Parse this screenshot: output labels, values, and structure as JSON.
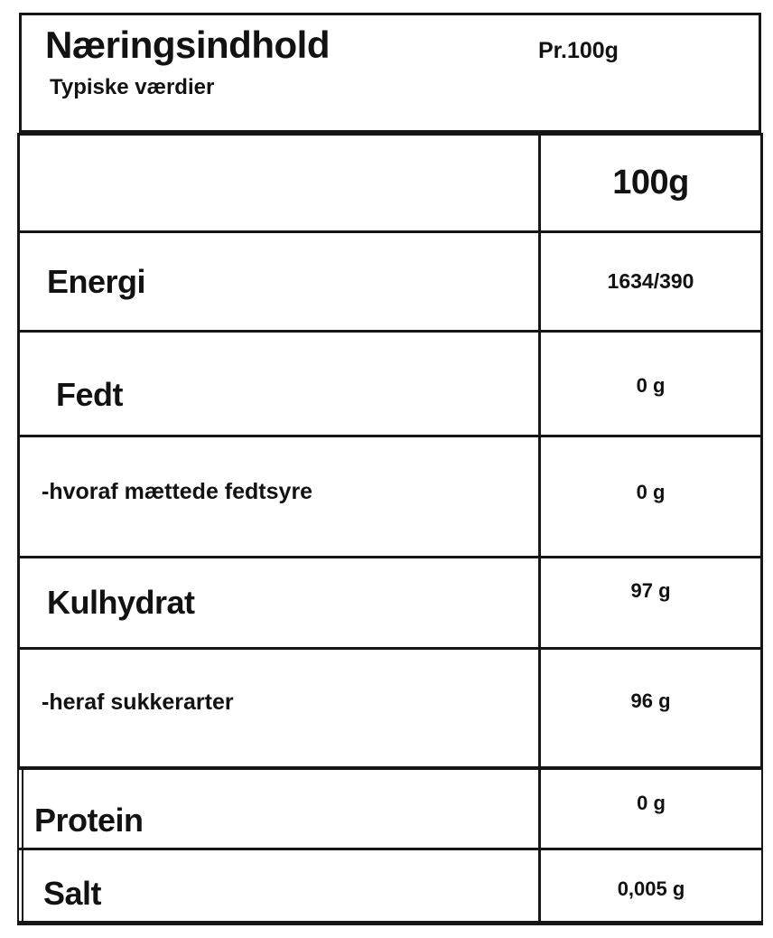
{
  "header": {
    "title": "Næringsindhold",
    "per": "Pr.100g",
    "subtitle": "Typiske værdier"
  },
  "table": {
    "column_header": "100g",
    "rows": [
      {
        "label": "Energi",
        "value": "1634/390",
        "type": "major"
      },
      {
        "label": "Fedt",
        "value": "0 g",
        "type": "major"
      },
      {
        "label": "-hvoraf mættede fedtsyre",
        "value": "0 g",
        "type": "sub"
      },
      {
        "label": "Kulhydrat",
        "value": "97 g",
        "type": "major"
      },
      {
        "label": "-heraf sukkerarter",
        "value": "96 g",
        "type": "sub"
      }
    ]
  },
  "footer_table": {
    "rows": [
      {
        "label": "Protein",
        "value": "0 g"
      },
      {
        "label": "Salt",
        "value": "0,005 g"
      }
    ]
  },
  "colors": {
    "ink": "#121212",
    "line": "#161616",
    "background": "#ffffff"
  }
}
